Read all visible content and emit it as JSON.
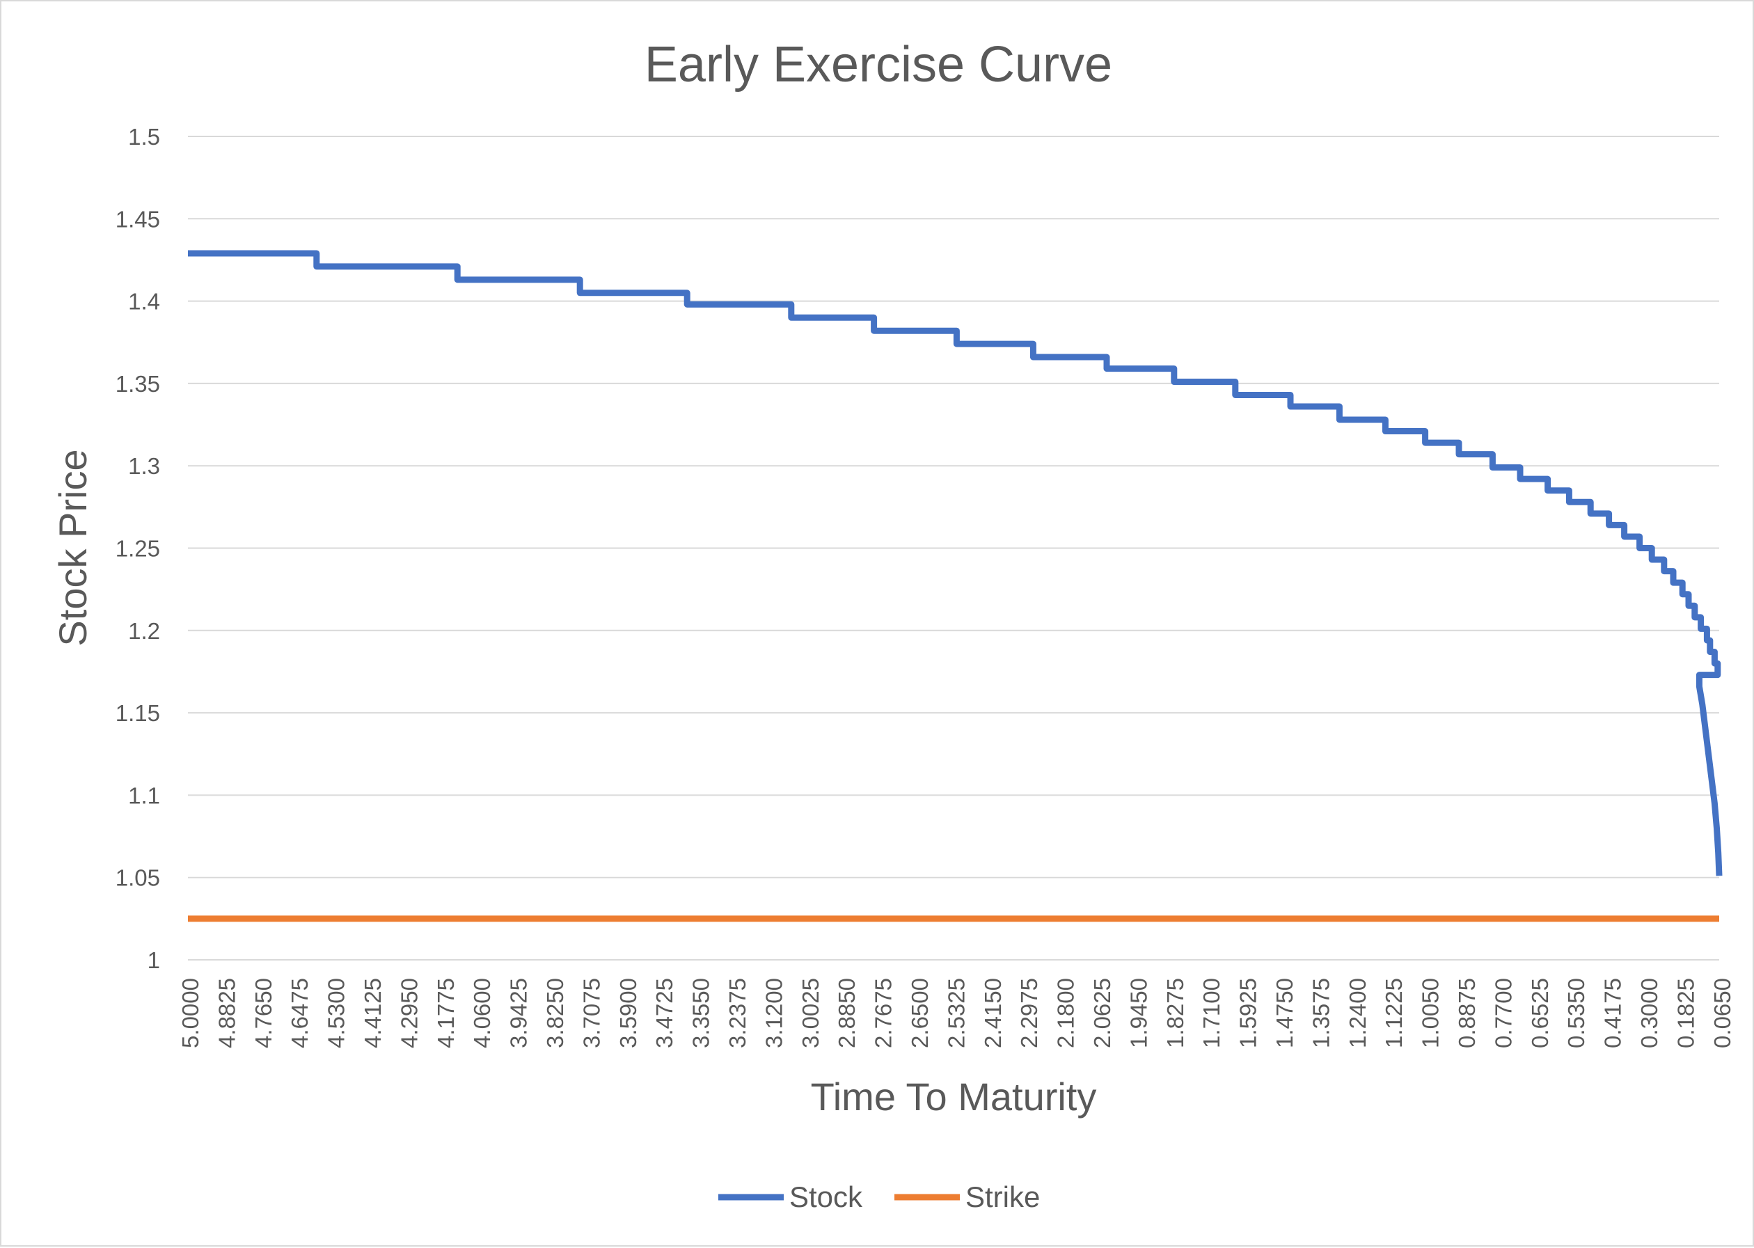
{
  "chart_data": {
    "type": "line",
    "title": "Early Exercise Curve",
    "xlabel": "Time To Maturity",
    "ylabel": "Stock Price",
    "ylim": [
      1,
      1.5
    ],
    "y_ticks": [
      "1",
      "1.05",
      "1.1",
      "1.15",
      "1.2",
      "1.25",
      "1.3",
      "1.35",
      "1.4",
      "1.45",
      "1.5"
    ],
    "x_range": [
      5.0,
      0.0
    ],
    "x_reversed": true,
    "x_ticks": [
      "5.0000",
      "4.8825",
      "4.7650",
      "4.6475",
      "4.5300",
      "4.4125",
      "4.2950",
      "4.1775",
      "4.0600",
      "3.9425",
      "3.8250",
      "3.7075",
      "3.5900",
      "3.4725",
      "3.3550",
      "3.2375",
      "3.1200",
      "3.0025",
      "2.8850",
      "2.7675",
      "2.6500",
      "2.5325",
      "2.4150",
      "2.2975",
      "2.1800",
      "2.0625",
      "1.9450",
      "1.8275",
      "1.7100",
      "1.5925",
      "1.4750",
      "1.3575",
      "1.2400",
      "1.1225",
      "1.0050",
      "0.8875",
      "0.7700",
      "0.6525",
      "0.5350",
      "0.4175",
      "0.3000",
      "0.1825",
      "0.0650"
    ],
    "grid": true,
    "legend_position": "bottom",
    "series": [
      {
        "name": "Stock",
        "color": "#4472C4",
        "step": true,
        "x": [
          5.0,
          4.58,
          4.12,
          3.72,
          3.37,
          3.03,
          2.76,
          2.49,
          2.24,
          2.0,
          1.78,
          1.58,
          1.4,
          1.24,
          1.09,
          0.96,
          0.85,
          0.74,
          0.65,
          0.56,
          0.49,
          0.42,
          0.36,
          0.31,
          0.26,
          0.22,
          0.18,
          0.15,
          0.12,
          0.1,
          0.08,
          0.06,
          0.04,
          0.03,
          0.015,
          0.005
        ],
        "y": [
          1.429,
          1.421,
          1.413,
          1.405,
          1.398,
          1.39,
          1.382,
          1.374,
          1.366,
          1.359,
          1.351,
          1.343,
          1.336,
          1.328,
          1.321,
          1.314,
          1.307,
          1.299,
          1.292,
          1.285,
          1.278,
          1.271,
          1.264,
          1.257,
          1.25,
          1.243,
          1.236,
          1.229,
          1.222,
          1.215,
          1.208,
          1.201,
          1.194,
          1.187,
          1.18,
          1.173
        ],
        "tail_x": [
          0.065,
          0.055,
          0.045,
          0.035,
          0.025,
          0.015,
          0.008,
          0.003,
          0.0
        ],
        "tail_y": [
          1.166,
          1.155,
          1.14,
          1.125,
          1.11,
          1.095,
          1.08,
          1.065,
          1.051
        ]
      },
      {
        "name": "Strike",
        "color": "#ED7D31",
        "x": [
          5.0,
          0.0
        ],
        "y": [
          1.025,
          1.025
        ]
      }
    ]
  }
}
